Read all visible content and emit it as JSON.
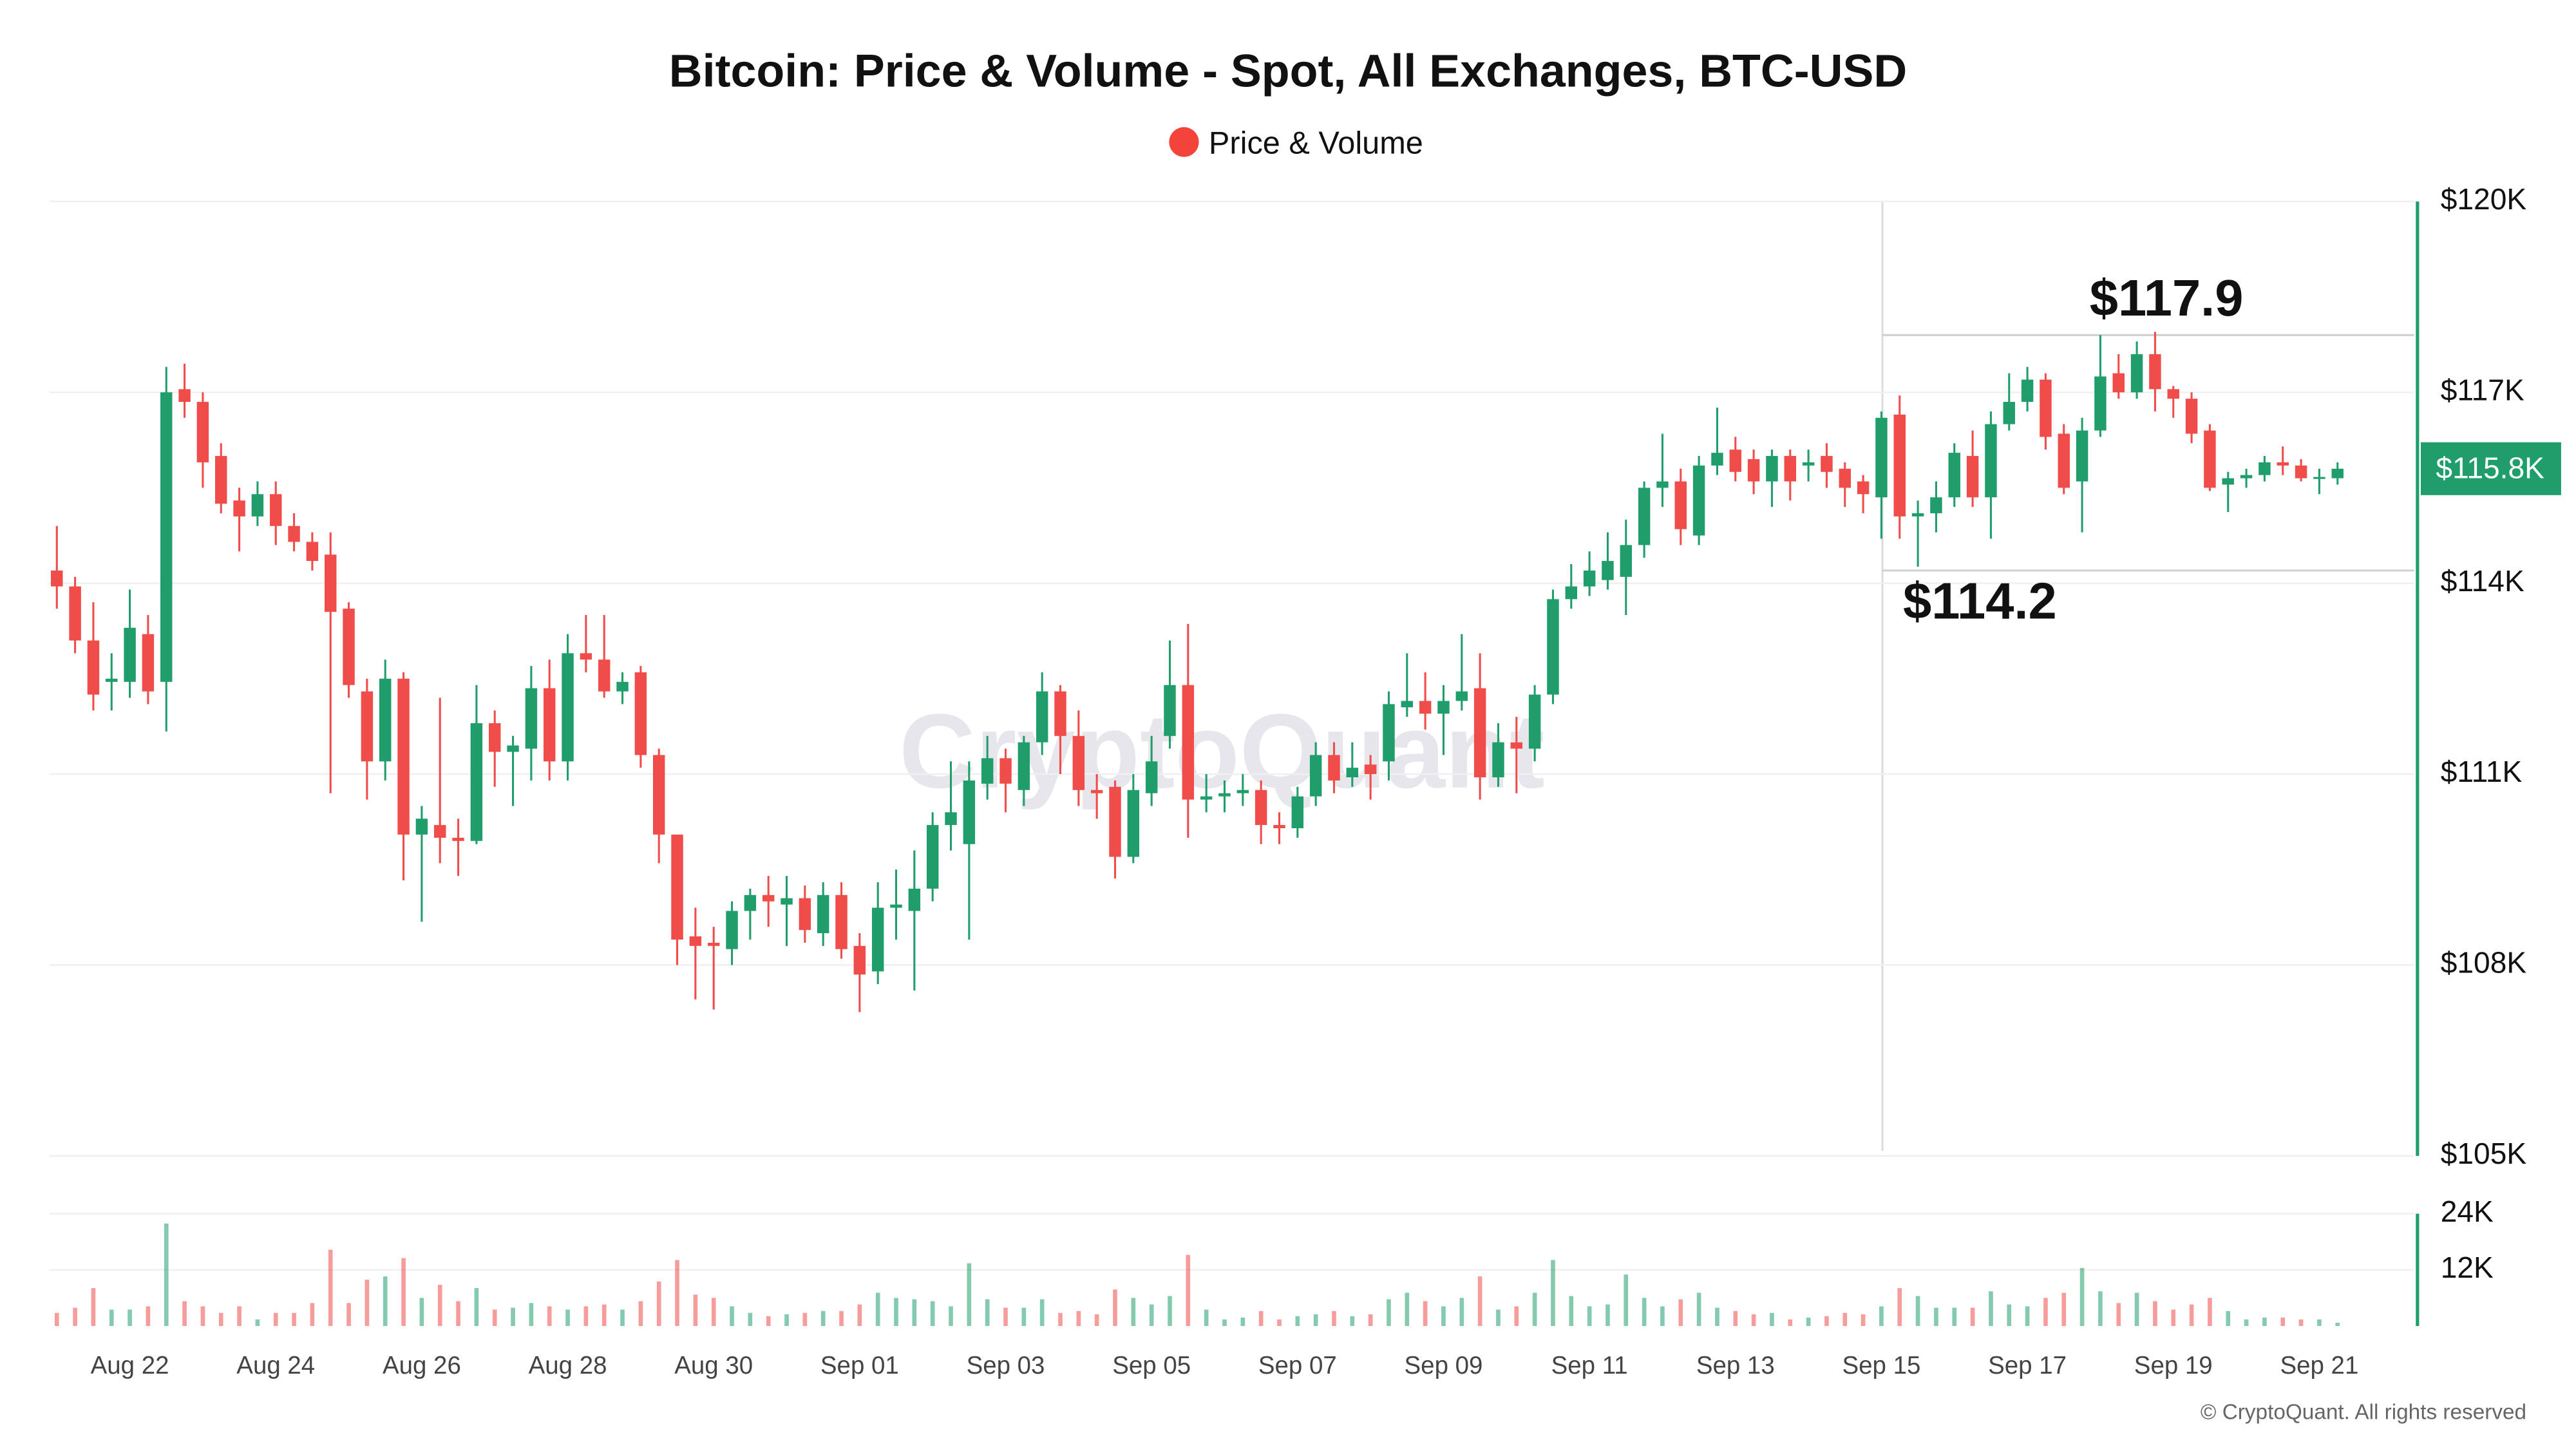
{
  "chart_data": {
    "type": "candlestick",
    "title": "Bitcoin: Price & Volume - Spot, All Exchanges, BTC-USD",
    "watermark": "CryptoQuant",
    "copyright": "© CryptoQuant. All rights reserved",
    "up_color": "#1f9e6c",
    "down_color": "#ef4c4a",
    "series": [
      {
        "name": "Price & Volume",
        "color": "#f4433b",
        "open": [
          114200,
          113950,
          113100,
          112450,
          112450,
          113200,
          112450,
          117050,
          116850,
          116000,
          115300,
          115050,
          115400,
          114900,
          114650,
          114450,
          113600,
          112300,
          111200,
          112500,
          110050,
          110200,
          110000,
          109950,
          111800,
          111350,
          111400,
          112350,
          111200,
          112900,
          112800,
          112300,
          112600,
          111300,
          110050,
          108450,
          108350,
          108250,
          108850,
          109100,
          108950,
          109050,
          108500,
          109100,
          108300,
          107900,
          108900,
          108850,
          109200,
          110200,
          109900,
          110850,
          111250,
          110750,
          111500,
          112300,
          111600,
          110750,
          110800,
          109700,
          110700,
          111600,
          112400,
          110600,
          110650,
          110700,
          110750,
          110200,
          110150,
          110650,
          111300,
          110950,
          111150,
          111200,
          112050,
          112150,
          111950,
          112150,
          112350,
          110950,
          111500,
          111400,
          112250,
          113750,
          113950,
          114050,
          114100,
          114600,
          115500,
          115600,
          114750,
          115850,
          116100,
          115950,
          115600,
          116000,
          115850,
          116000,
          115800,
          115600,
          115350,
          116650,
          115050,
          115100,
          115350,
          116000,
          115350,
          116500,
          116850,
          117200,
          116350,
          115600,
          116400,
          117300,
          117000,
          117600,
          117050,
          116900,
          116400,
          115550,
          115650,
          115700,
          115900,
          115850,
          115650,
          115650
        ],
        "high": [
          114900,
          114100,
          113700,
          112900,
          113900,
          113500,
          117400,
          117450,
          117000,
          116200,
          115500,
          115600,
          115600,
          115100,
          114800,
          114800,
          113700,
          112500,
          112800,
          112600,
          110500,
          112200,
          110300,
          112400,
          112000,
          111600,
          112700,
          112800,
          113200,
          113500,
          113500,
          112600,
          112700,
          111400,
          110050,
          108900,
          108600,
          109000,
          109200,
          109400,
          109400,
          109250,
          109300,
          109300,
          108500,
          109300,
          109500,
          109800,
          110400,
          111200,
          111200,
          111600,
          111400,
          111600,
          112600,
          112400,
          112000,
          111000,
          110900,
          111000,
          111600,
          113100,
          113360,
          111000,
          110900,
          111000,
          110900,
          110400,
          110800,
          111500,
          111500,
          111500,
          111300,
          112300,
          112900,
          112600,
          112400,
          113200,
          112900,
          111800,
          111900,
          112400,
          113900,
          114300,
          114500,
          114800,
          115000,
          115600,
          116350,
          115800,
          116000,
          116760,
          116300,
          116100,
          116100,
          116100,
          116100,
          116200,
          115900,
          115700,
          116700,
          116950,
          115300,
          115600,
          116200,
          116400,
          116700,
          117300,
          117400,
          117300,
          116500,
          116600,
          117900,
          117600,
          117800,
          117950,
          117100,
          117000,
          116500,
          115750,
          115800,
          116000,
          116150,
          115950,
          115800,
          115900
        ],
        "low": [
          113600,
          112900,
          112000,
          112000,
          112200,
          112100,
          111670,
          116600,
          115500,
          115100,
          114500,
          114900,
          114600,
          114500,
          114200,
          110700,
          112200,
          110600,
          110900,
          109330,
          108680,
          109600,
          109400,
          109900,
          110800,
          110500,
          110900,
          110900,
          110900,
          112600,
          112200,
          112100,
          111100,
          109600,
          108000,
          107460,
          107300,
          108000,
          108400,
          108600,
          108300,
          108350,
          108300,
          108100,
          107260,
          107700,
          108400,
          107600,
          109000,
          109800,
          108400,
          110600,
          110400,
          110500,
          111300,
          111000,
          110500,
          110300,
          109360,
          109600,
          110500,
          111400,
          110000,
          110400,
          110400,
          110500,
          109900,
          109900,
          110000,
          110500,
          110700,
          110800,
          110600,
          110900,
          111900,
          111700,
          111300,
          112000,
          110600,
          110800,
          110700,
          111200,
          112100,
          113600,
          113800,
          113900,
          113500,
          114400,
          115200,
          114600,
          114600,
          115700,
          115600,
          115400,
          115200,
          115300,
          115600,
          115500,
          115200,
          115100,
          114700,
          114700,
          114260,
          114800,
          115200,
          115200,
          114700,
          116400,
          116700,
          116100,
          115400,
          114800,
          116300,
          116900,
          116900,
          116700,
          116600,
          116200,
          115450,
          115120,
          115500,
          115600,
          115700,
          115600,
          115400,
          115550
        ],
        "close": [
          113950,
          113100,
          112250,
          112500,
          113300,
          112300,
          117000,
          116850,
          115900,
          115250,
          115050,
          115400,
          114900,
          114650,
          114350,
          113550,
          112400,
          111200,
          112500,
          110050,
          110300,
          110000,
          109950,
          111800,
          111350,
          111450,
          112350,
          111200,
          112900,
          112800,
          112300,
          112450,
          111300,
          110050,
          108400,
          108300,
          108300,
          108850,
          109100,
          109000,
          109050,
          108550,
          109100,
          108250,
          107850,
          108900,
          108950,
          109200,
          110200,
          110400,
          110900,
          111250,
          110850,
          111500,
          112300,
          111600,
          110750,
          110700,
          109700,
          110750,
          111200,
          112400,
          110600,
          110650,
          110700,
          110750,
          110200,
          110150,
          110650,
          111300,
          110900,
          111100,
          111000,
          112100,
          112150,
          111950,
          112150,
          112300,
          110950,
          111500,
          111400,
          112250,
          113750,
          113950,
          114200,
          114350,
          114600,
          115500,
          115600,
          114850,
          115850,
          116050,
          115750,
          115600,
          116000,
          115600,
          115900,
          115750,
          115500,
          115400,
          116600,
          115050,
          115100,
          115350,
          116050,
          115350,
          116500,
          116850,
          117200,
          116300,
          115500,
          116400,
          117250,
          117000,
          117600,
          117050,
          116900,
          116350,
          115500,
          115650,
          115700,
          115900,
          115850,
          115650,
          115670,
          115800
        ],
        "volume": [
          2800,
          3900,
          8100,
          3500,
          3500,
          4200,
          21900,
          5300,
          4200,
          2800,
          4200,
          1400,
          2800,
          2800,
          4900,
          16300,
          4900,
          9900,
          10600,
          14500,
          6000,
          8800,
          5300,
          8100,
          3500,
          3900,
          4900,
          4200,
          3500,
          4200,
          4600,
          3500,
          5300,
          9500,
          14100,
          6700,
          6000,
          4200,
          2800,
          2100,
          2500,
          2800,
          3200,
          3200,
          4600,
          7100,
          6000,
          5700,
          5300,
          4200,
          13400,
          5700,
          3900,
          3900,
          5700,
          2800,
          3200,
          2500,
          7800,
          6000,
          4600,
          6400,
          15200,
          3500,
          1400,
          1800,
          3200,
          1400,
          2100,
          2500,
          3200,
          2100,
          2500,
          5700,
          7100,
          5300,
          4200,
          6000,
          10600,
          3500,
          4200,
          7100,
          14100,
          6400,
          4200,
          4600,
          11000,
          6000,
          4200,
          5700,
          7100,
          3900,
          3200,
          2500,
          2800,
          1400,
          1800,
          2100,
          2800,
          2500,
          4200,
          8100,
          6400,
          3900,
          3900,
          3900,
          7400,
          4600,
          4200,
          6000,
          7100,
          12400,
          7400,
          4900,
          7100,
          5300,
          3500,
          4600,
          6000,
          3200,
          1400,
          1800,
          1800,
          1400,
          1400,
          700
        ]
      }
    ],
    "xlim": [
      -0.4,
      129.2
    ],
    "xticks": [
      {
        "value": 4,
        "label": "Aug 22"
      },
      {
        "value": 12,
        "label": "Aug 24"
      },
      {
        "value": 20,
        "label": "Aug 26"
      },
      {
        "value": 28,
        "label": "Aug 28"
      },
      {
        "value": 36,
        "label": "Aug 30"
      },
      {
        "value": 44,
        "label": "Sep 01"
      },
      {
        "value": 52,
        "label": "Sep 03"
      },
      {
        "value": 60,
        "label": "Sep 05"
      },
      {
        "value": 68,
        "label": "Sep 07"
      },
      {
        "value": 76,
        "label": "Sep 09"
      },
      {
        "value": 84,
        "label": "Sep 11"
      },
      {
        "value": 92,
        "label": "Sep 13"
      },
      {
        "value": 100,
        "label": "Sep 15"
      },
      {
        "value": 108,
        "label": "Sep 17"
      },
      {
        "value": 116,
        "label": "Sep 19"
      },
      {
        "value": 124,
        "label": "Sep 21"
      }
    ],
    "ylim": [
      105000,
      120000
    ],
    "yticks": [
      {
        "value": 120000,
        "label": "$120K"
      },
      {
        "value": 117000,
        "label": "$117K"
      },
      {
        "value": 114000,
        "label": "$114K"
      },
      {
        "value": 111000,
        "label": "$111K"
      },
      {
        "value": 108000,
        "label": "$108K"
      },
      {
        "value": 105000,
        "label": "$105K"
      }
    ],
    "y2lim": [
      0,
      24000
    ],
    "y2ticks": [
      {
        "value": 24000,
        "label": "24K"
      },
      {
        "value": 12000,
        "label": "12K"
      }
    ],
    "grid": true,
    "last_price": {
      "value": 115800,
      "label": "$115.8K"
    },
    "annotations": [
      {
        "value": 117900,
        "label": "$117.9"
      },
      {
        "value": 114200,
        "label": "$114.2"
      }
    ]
  }
}
